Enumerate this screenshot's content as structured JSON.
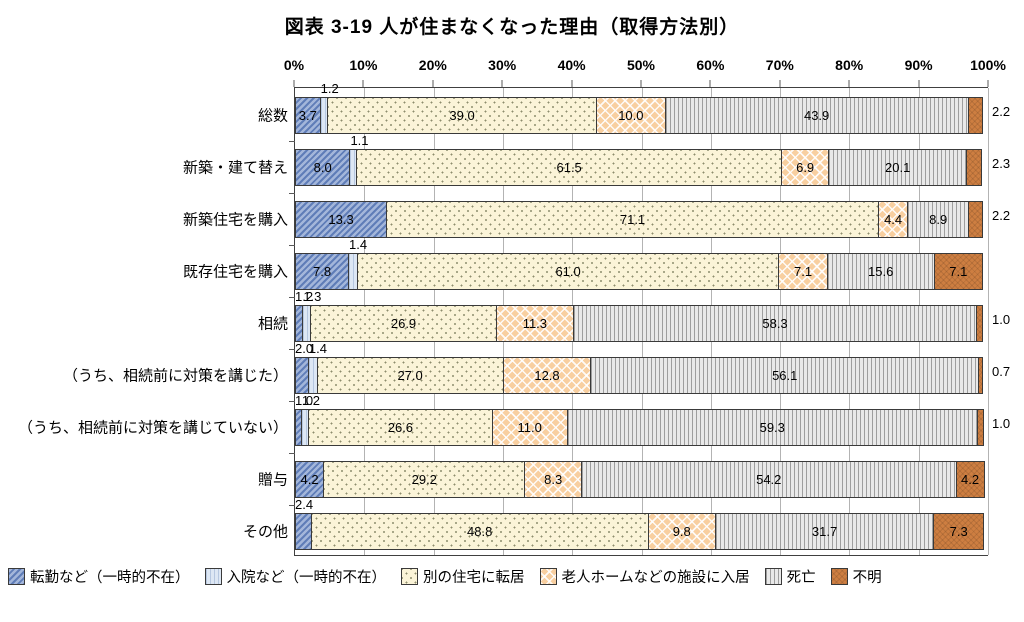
{
  "title": "図表 3-19 人が住まなくなった理由（取得方法別）",
  "chart_data": {
    "type": "bar",
    "stacked": true,
    "orientation": "horizontal",
    "title": "図表 3-19 人が住まなくなった理由（取得方法別）",
    "xlabel": "",
    "ylabel": "",
    "xlim": [
      0,
      100
    ],
    "tick_step": 10,
    "tick_labels": [
      "0%",
      "10%",
      "20%",
      "30%",
      "40%",
      "50%",
      "60%",
      "70%",
      "80%",
      "90%",
      "100%"
    ],
    "grid": true,
    "legend_position": "bottom",
    "value_format": "one-decimal",
    "categories": [
      "総数",
      "新築・建て替え",
      "新築住宅を購入",
      "既存住宅を購入",
      "相続",
      "（うち、相続前に対策を講じた）",
      "（うち、相続前に対策を講じていない）",
      "贈与",
      "その他"
    ],
    "series": [
      {
        "name": "転勤など（一時的不在）",
        "fill": "#a3b6da",
        "pattern": "diagonal-stripes-blue",
        "values": [
          3.7,
          8.0,
          13.3,
          7.8,
          1.2,
          2.0,
          1.0,
          4.2,
          2.4
        ]
      },
      {
        "name": "入院など（一時的不在）",
        "fill": "#dde7f4",
        "pattern": "vertical-lines-lightblue",
        "values": [
          1.2,
          1.1,
          0,
          1.4,
          1.3,
          1.4,
          1.2,
          0,
          0
        ]
      },
      {
        "name": "別の住宅に転居",
        "fill": "#fbf4d8",
        "pattern": "dots-cream",
        "values": [
          39.0,
          61.5,
          71.1,
          61.0,
          26.9,
          27.0,
          26.6,
          29.2,
          48.8
        ]
      },
      {
        "name": "老人ホームなどの施設に入居",
        "fill": "#f8cfa0",
        "pattern": "diamond-crosshatch-orange",
        "values": [
          10.0,
          6.9,
          4.4,
          7.1,
          11.3,
          12.8,
          11.0,
          8.3,
          9.8
        ]
      },
      {
        "name": "死亡",
        "fill": "#e9e9e9",
        "pattern": "vertical-lines-gray",
        "values": [
          43.9,
          20.1,
          8.9,
          15.6,
          58.3,
          56.1,
          59.3,
          54.2,
          31.7
        ]
      },
      {
        "name": "不明",
        "fill": "#cd7e41",
        "pattern": "solid-brown-crosshatch",
        "values": [
          2.2,
          2.3,
          2.2,
          7.1,
          1.0,
          0.7,
          1.0,
          4.2,
          7.3
        ]
      }
    ]
  },
  "colors": {
    "axis_line": "#404040",
    "gridline": "#b3b3b3",
    "segment_border": "#3a3a3a",
    "label_text": "#000000"
  }
}
